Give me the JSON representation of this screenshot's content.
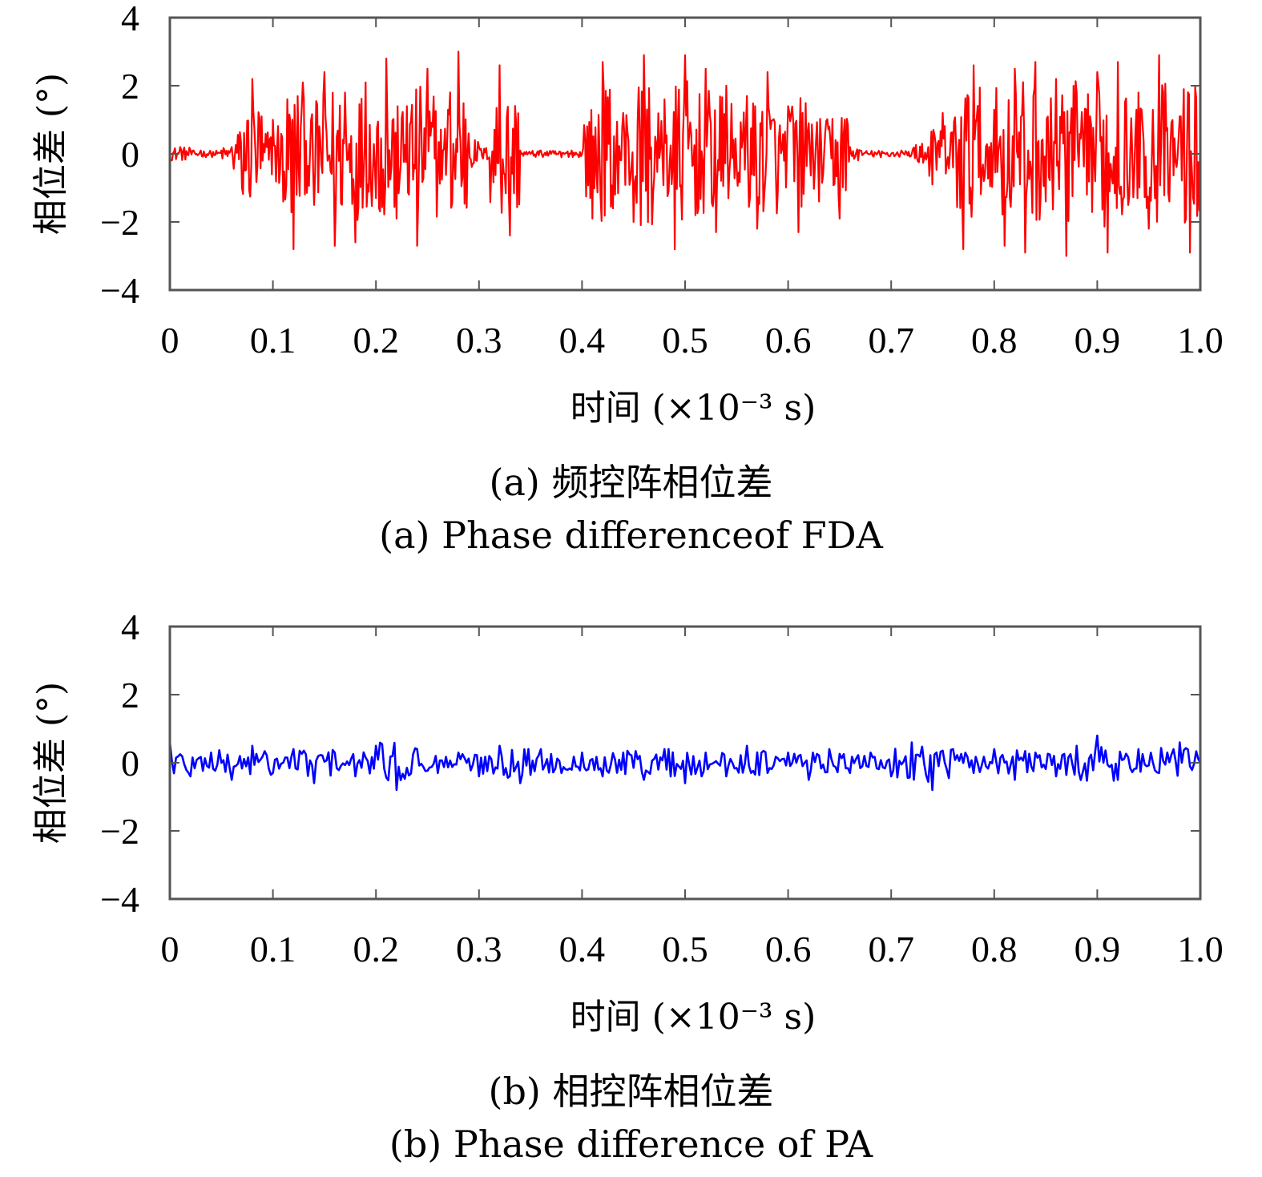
{
  "colors": {
    "series_a": "#ff0000",
    "series_b": "#0000ff",
    "axes": "#555555"
  },
  "panels": [
    {
      "ylabel": "相位差 (°)",
      "xlabel": "时间 (×10⁻³ s)",
      "caption_cn": "(a) 频控阵相位差",
      "caption_en": "(a) Phase differenceof FDA"
    },
    {
      "ylabel": "相位差 (°)",
      "xlabel": "时间 (×10⁻³ s)",
      "caption_cn": "(b) 相控阵相位差",
      "caption_en": "(b) Phase difference of PA"
    }
  ],
  "chart_data": [
    {
      "type": "line",
      "title": "",
      "xlabel": "时间 (×10⁻³ s)",
      "ylabel": "相位差 (°)",
      "xlim": [
        0,
        1.0
      ],
      "ylim": [
        -4,
        4
      ],
      "xticks": [
        "0",
        "0.1",
        "0.2",
        "0.3",
        "0.4",
        "0.5",
        "0.6",
        "0.7",
        "0.8",
        "0.9",
        "1.0"
      ],
      "yticks": [
        "4",
        "2",
        "0",
        "−2",
        "−4"
      ],
      "grid": false,
      "series": [
        {
          "color": "#ff0000",
          "description_segments": [
            {
              "x_range": [
                0.0,
                0.065
              ],
              "amplitude": 0.15
            },
            {
              "x_range": [
                0.065,
                0.33
              ],
              "amplitude": 2.9
            },
            {
              "x_range": [
                0.33,
                0.4
              ],
              "amplitude": 0.2
            },
            {
              "x_range": [
                0.4,
                0.665
              ],
              "amplitude": 2.9
            },
            {
              "x_range": [
                0.665,
                0.73
              ],
              "amplitude": 0.15
            },
            {
              "x_range": [
                0.73,
                1.0
              ],
              "amplitude": 3.0
            }
          ],
          "x": [
            0.0,
            0.01,
            0.02,
            0.03,
            0.04,
            0.05,
            0.06,
            0.07,
            0.08,
            0.09,
            0.1,
            0.11,
            0.12,
            0.13,
            0.14,
            0.15,
            0.16,
            0.17,
            0.18,
            0.19,
            0.2,
            0.21,
            0.22,
            0.23,
            0.24,
            0.25,
            0.26,
            0.27,
            0.28,
            0.29,
            0.3,
            0.31,
            0.32,
            0.33,
            0.34,
            0.35,
            0.36,
            0.37,
            0.38,
            0.39,
            0.4,
            0.41,
            0.42,
            0.43,
            0.44,
            0.45,
            0.46,
            0.47,
            0.48,
            0.49,
            0.5,
            0.51,
            0.52,
            0.53,
            0.54,
            0.55,
            0.56,
            0.57,
            0.58,
            0.59,
            0.6,
            0.61,
            0.62,
            0.63,
            0.64,
            0.65,
            0.66,
            0.67,
            0.68,
            0.69,
            0.7,
            0.71,
            0.72,
            0.73,
            0.74,
            0.75,
            0.76,
            0.77,
            0.78,
            0.79,
            0.8,
            0.81,
            0.82,
            0.83,
            0.84,
            0.85,
            0.86,
            0.87,
            0.88,
            0.89,
            0.9,
            0.91,
            0.92,
            0.93,
            0.94,
            0.95,
            0.96,
            0.97,
            0.98,
            0.99,
            1.0
          ],
          "values": [
            -0.2,
            0.2,
            0.1,
            0.1,
            0.0,
            0.1,
            0.2,
            -1.0,
            2.2,
            -0.2,
            1.0,
            -1.4,
            -2.8,
            1.6,
            -1.5,
            2.4,
            -2.7,
            1.8,
            -2.6,
            2.1,
            -1.3,
            2.8,
            -1.9,
            1.4,
            -2.7,
            2.5,
            -0.4,
            1.3,
            3.0,
            0.6,
            0.2,
            -0.1,
            2.6,
            -2.4,
            0.1,
            0.0,
            0.1,
            0.0,
            -0.1,
            0.1,
            0.0,
            -1.9,
            2.7,
            -1.6,
            1.2,
            -2.0,
            2.9,
            -0.7,
            1.6,
            -2.8,
            2.9,
            -1.8,
            2.5,
            -2.3,
            2.0,
            -0.4,
            1.7,
            -2.2,
            2.4,
            -1.1,
            1.4,
            -2.3,
            0.9,
            -1.4,
            0.8,
            -1.9,
            0.2,
            0.1,
            0.0,
            -0.1,
            0.0,
            0.1,
            0.0,
            0.3,
            -0.9,
            1.2,
            -0.4,
            -2.8,
            2.6,
            -0.8,
            1.3,
            -2.7,
            2.5,
            -2.9,
            2.7,
            -1.4,
            2.2,
            -3.0,
            1.8,
            -1.2,
            2.4,
            -2.9,
            2.7,
            -1.5,
            1.8,
            -2.2,
            2.9,
            -1.4,
            1.1,
            -2.9,
            0.9
          ]
        }
      ]
    },
    {
      "type": "line",
      "title": "",
      "xlabel": "时间 (×10⁻³ s)",
      "ylabel": "相位差 (°)",
      "xlim": [
        0,
        1.0
      ],
      "ylim": [
        -4,
        4
      ],
      "xticks": [
        "0",
        "0.1",
        "0.2",
        "0.3",
        "0.4",
        "0.5",
        "0.6",
        "0.7",
        "0.8",
        "0.9",
        "1.0"
      ],
      "yticks": [
        "4",
        "2",
        "0",
        "−2",
        "−4"
      ],
      "grid": false,
      "series": [
        {
          "color": "#0000ff",
          "x": [
            0.0,
            0.02,
            0.04,
            0.06,
            0.08,
            0.1,
            0.12,
            0.14,
            0.16,
            0.18,
            0.2,
            0.22,
            0.24,
            0.26,
            0.28,
            0.3,
            0.32,
            0.34,
            0.36,
            0.38,
            0.4,
            0.42,
            0.44,
            0.46,
            0.48,
            0.5,
            0.52,
            0.54,
            0.56,
            0.58,
            0.6,
            0.62,
            0.64,
            0.66,
            0.68,
            0.7,
            0.72,
            0.74,
            0.76,
            0.78,
            0.8,
            0.82,
            0.84,
            0.86,
            0.88,
            0.9,
            0.92,
            0.94,
            0.96,
            0.98,
            1.0
          ],
          "values": [
            0.6,
            -0.4,
            0.3,
            -0.5,
            0.5,
            -0.3,
            0.4,
            -0.6,
            0.3,
            -0.4,
            0.5,
            -0.8,
            0.4,
            -0.3,
            0.3,
            -0.4,
            0.5,
            -0.6,
            0.4,
            -0.3,
            0.3,
            -0.4,
            0.3,
            -0.5,
            0.4,
            -0.6,
            0.3,
            -0.4,
            0.5,
            -0.3,
            0.3,
            -0.5,
            0.4,
            -0.3,
            0.3,
            -0.4,
            0.6,
            -0.8,
            0.4,
            -0.3,
            0.4,
            -0.5,
            0.3,
            -0.4,
            0.5,
            0.8,
            -0.5,
            0.4,
            -0.3,
            0.6,
            0.0
          ]
        }
      ]
    }
  ]
}
